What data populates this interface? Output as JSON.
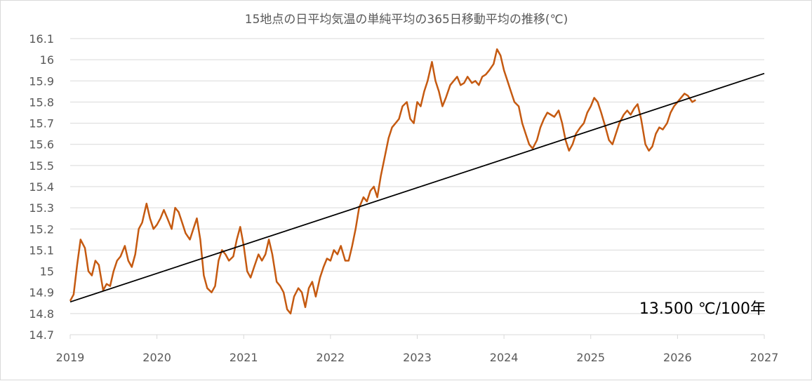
{
  "chart_data": {
    "type": "line",
    "title": "15地点の日平均気温の単純平均の365日移動平均の推移(℃)",
    "xlabel": "",
    "ylabel": "",
    "xlim": [
      2019,
      2027
    ],
    "ylim": [
      14.7,
      16.1
    ],
    "x_ticks": [
      "2019",
      "2020",
      "2021",
      "2022",
      "2023",
      "2024",
      "2025",
      "2026",
      "2027"
    ],
    "y_ticks": [
      "14.7",
      "14.8",
      "14.9",
      "15",
      "15.1",
      "15.2",
      "15.3",
      "15.4",
      "15.5",
      "15.6",
      "15.7",
      "15.8",
      "15.9",
      "16",
      "16.1"
    ],
    "grid": "horizontal",
    "annotation": "13.500 ℃/100年",
    "colors": {
      "series": "#c55a11",
      "trend": "#000000",
      "grid": "#d9d9d9",
      "text": "#595959"
    },
    "series": [
      {
        "style": "orange-line",
        "x": [
          2019.0,
          2019.04,
          2019.08,
          2019.12,
          2019.17,
          2019.21,
          2019.25,
          2019.29,
          2019.33,
          2019.38,
          2019.42,
          2019.46,
          2019.5,
          2019.54,
          2019.58,
          2019.63,
          2019.67,
          2019.71,
          2019.75,
          2019.79,
          2019.83,
          2019.88,
          2019.92,
          2019.96,
          2020.0,
          2020.04,
          2020.08,
          2020.12,
          2020.17,
          2020.21,
          2020.25,
          2020.29,
          2020.33,
          2020.38,
          2020.42,
          2020.46,
          2020.5,
          2020.54,
          2020.58,
          2020.63,
          2020.67,
          2020.71,
          2020.75,
          2020.79,
          2020.83,
          2020.88,
          2020.92,
          2020.96,
          2021.0,
          2021.04,
          2021.08,
          2021.12,
          2021.17,
          2021.21,
          2021.25,
          2021.29,
          2021.33,
          2021.38,
          2021.42,
          2021.46,
          2021.5,
          2021.54,
          2021.58,
          2021.63,
          2021.67,
          2021.71,
          2021.75,
          2021.79,
          2021.83,
          2021.88,
          2021.92,
          2021.96,
          2022.0,
          2022.04,
          2022.08,
          2022.12,
          2022.17,
          2022.21,
          2022.25,
          2022.29,
          2022.33,
          2022.38,
          2022.42,
          2022.46,
          2022.5,
          2022.54,
          2022.58,
          2022.63,
          2022.67,
          2022.71,
          2022.75,
          2022.79,
          2022.83,
          2022.88,
          2022.92,
          2022.96,
          2023.0,
          2023.04,
          2023.08,
          2023.12,
          2023.17,
          2023.21,
          2023.25,
          2023.29,
          2023.33,
          2023.38,
          2023.42,
          2023.46,
          2023.5,
          2023.54,
          2023.58,
          2023.63,
          2023.67,
          2023.71,
          2023.75,
          2023.79,
          2023.83,
          2023.88,
          2023.92,
          2023.96,
          2024.0,
          2024.04,
          2024.08,
          2024.12,
          2024.17,
          2024.21,
          2024.25,
          2024.29,
          2024.33,
          2024.38,
          2024.42,
          2024.46,
          2024.5,
          2024.54,
          2024.58,
          2024.63,
          2024.67,
          2024.71,
          2024.75,
          2024.79,
          2024.83,
          2024.88,
          2024.92,
          2024.96,
          2025.0,
          2025.04,
          2025.08,
          2025.12,
          2025.17,
          2025.21,
          2025.25,
          2025.29,
          2025.33,
          2025.38,
          2025.42,
          2025.46,
          2025.5,
          2025.54,
          2025.58,
          2025.63,
          2025.67,
          2025.71,
          2025.75,
          2025.79,
          2025.83,
          2025.88,
          2025.92,
          2025.96,
          2026.0,
          2026.04,
          2026.08,
          2026.12,
          2026.17,
          2026.21
        ],
        "y": [
          14.86,
          14.89,
          15.03,
          15.15,
          15.11,
          15.0,
          14.98,
          15.05,
          15.03,
          14.91,
          14.94,
          14.93,
          15.0,
          15.05,
          15.07,
          15.12,
          15.05,
          15.02,
          15.08,
          15.2,
          15.23,
          15.32,
          15.25,
          15.2,
          15.22,
          15.25,
          15.29,
          15.25,
          15.2,
          15.3,
          15.28,
          15.23,
          15.18,
          15.15,
          15.2,
          15.25,
          15.15,
          14.98,
          14.92,
          14.9,
          14.93,
          15.05,
          15.1,
          15.08,
          15.05,
          15.07,
          15.15,
          15.21,
          15.12,
          15.0,
          14.97,
          15.02,
          15.08,
          15.05,
          15.08,
          15.15,
          15.08,
          14.95,
          14.93,
          14.9,
          14.82,
          14.8,
          14.88,
          14.92,
          14.9,
          14.83,
          14.92,
          14.95,
          14.88,
          14.97,
          15.02,
          15.06,
          15.05,
          15.1,
          15.08,
          15.12,
          15.05,
          15.05,
          15.12,
          15.2,
          15.3,
          15.35,
          15.33,
          15.38,
          15.4,
          15.35,
          15.45,
          15.55,
          15.63,
          15.68,
          15.7,
          15.72,
          15.78,
          15.8,
          15.72,
          15.7,
          15.8,
          15.78,
          15.85,
          15.9,
          15.99,
          15.9,
          15.85,
          15.78,
          15.82,
          15.88,
          15.9,
          15.92,
          15.88,
          15.89,
          15.92,
          15.89,
          15.9,
          15.88,
          15.92,
          15.93,
          15.95,
          15.98,
          16.05,
          16.02,
          15.95,
          15.9,
          15.85,
          15.8,
          15.78,
          15.7,
          15.65,
          15.6,
          15.58,
          15.62,
          15.68,
          15.72,
          15.75,
          15.74,
          15.73,
          15.76,
          15.7,
          15.62,
          15.57,
          15.6,
          15.65,
          15.68,
          15.7,
          15.75,
          15.78,
          15.82,
          15.8,
          15.75,
          15.68,
          15.62,
          15.6,
          15.65,
          15.7,
          15.74,
          15.76,
          15.74,
          15.77,
          15.79,
          15.72,
          15.6,
          15.57,
          15.59,
          15.65,
          15.68,
          15.67,
          15.7,
          15.75,
          15.78,
          15.8,
          15.82,
          15.84,
          15.83,
          15.8,
          15.81
        ]
      },
      {
        "style": "trend-line",
        "x": [
          2019.0,
          2027.0
        ],
        "y": [
          14.855,
          15.935
        ]
      }
    ]
  }
}
